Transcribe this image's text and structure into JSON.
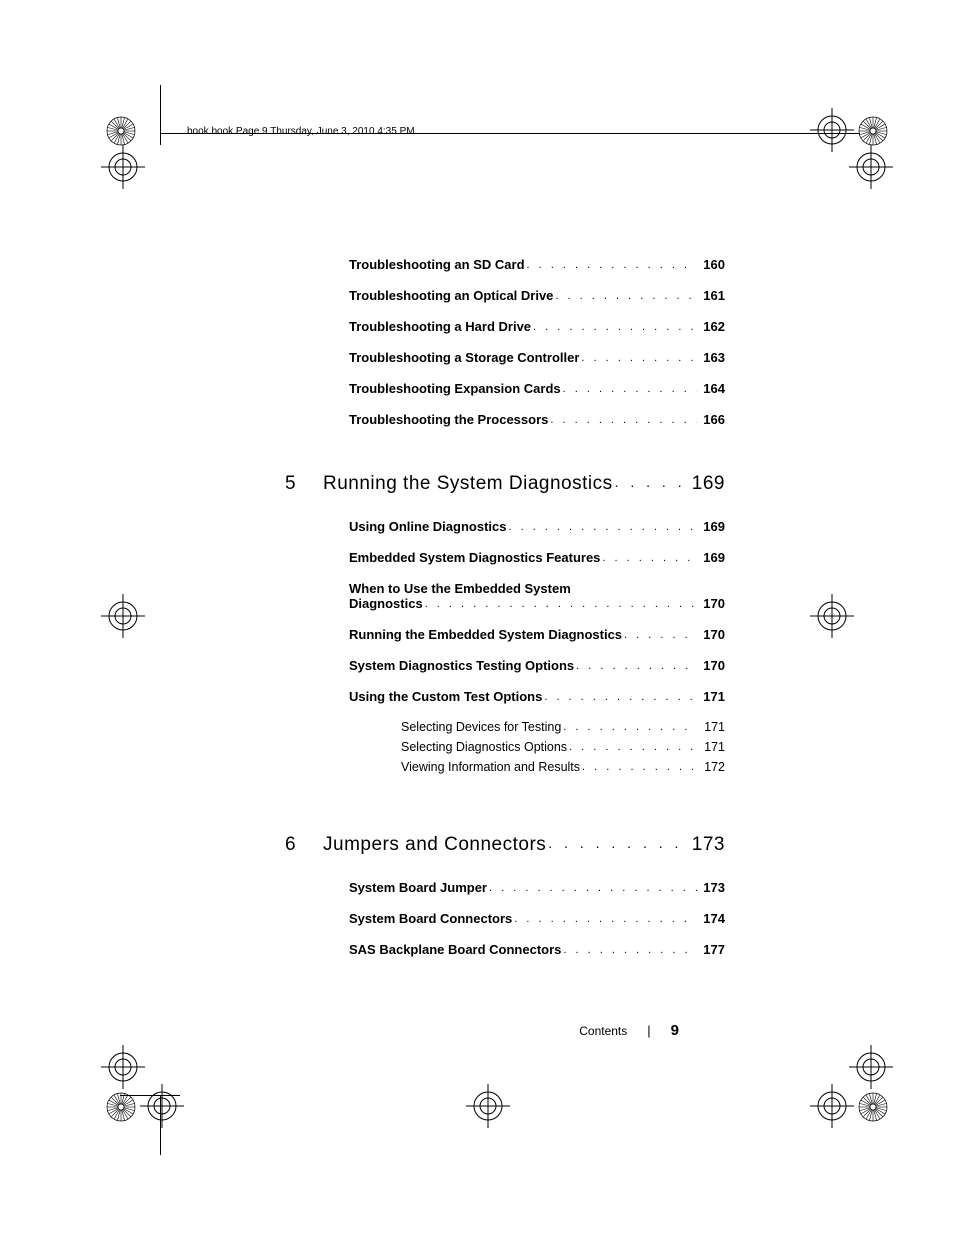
{
  "header": "book.book  Page 9  Thursday, June 3, 2010  4:35 PM",
  "sections": [
    {
      "entries": [
        {
          "title": "Troubleshooting an SD Card",
          "page": "160"
        },
        {
          "title": "Troubleshooting an Optical Drive",
          "page": "161"
        },
        {
          "title": "Troubleshooting a Hard Drive",
          "page": "162"
        },
        {
          "title": "Troubleshooting a Storage Controller",
          "page": "163"
        },
        {
          "title": "Troubleshooting Expansion Cards",
          "page": "164"
        },
        {
          "title": "Troubleshooting the Processors",
          "page": "166"
        }
      ]
    },
    {
      "chapter_num": "5",
      "chapter_title": "Running the System Diagnostics",
      "chapter_page": "169",
      "entries": [
        {
          "title": "Using Online Diagnostics",
          "page": "169"
        },
        {
          "title": "Embedded System Diagnostics Features",
          "page": "169"
        },
        {
          "wrap_line1": "When to Use the Embedded System",
          "wrap_line2": "Diagnostics",
          "page": "170"
        },
        {
          "title": "Running the Embedded System Diagnostics",
          "page": "170"
        },
        {
          "title": "System Diagnostics Testing Options",
          "page": "170"
        },
        {
          "title": "Using the Custom Test Options",
          "page": "171",
          "subs": [
            {
              "title": "Selecting Devices for Testing",
              "page": "171"
            },
            {
              "title": "Selecting Diagnostics Options",
              "page": "171"
            },
            {
              "title": "Viewing Information and Results",
              "page": "172"
            }
          ]
        }
      ]
    },
    {
      "chapter_num": "6",
      "chapter_title": "Jumpers and Connectors",
      "chapter_page": "173",
      "entries": [
        {
          "title": "System Board Jumper",
          "page": "173"
        },
        {
          "title": "System Board Connectors",
          "page": "174"
        },
        {
          "title": "SAS Backplane Board Connectors",
          "page": "177"
        }
      ]
    }
  ],
  "footer": {
    "label": "Contents",
    "page": "9"
  }
}
